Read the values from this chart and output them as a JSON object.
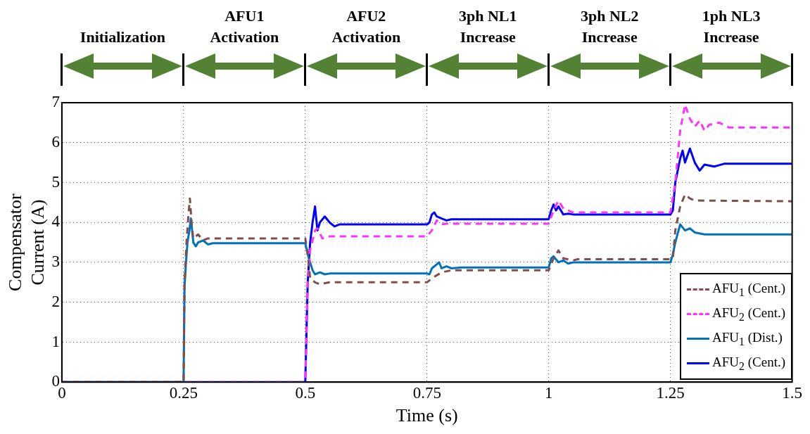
{
  "chart_data": {
    "type": "line",
    "xlabel": "Time (s)",
    "ylabel": "Compensator\nCurrent (A)",
    "xlim": [
      0,
      1.5
    ],
    "xticks": [
      0,
      0.25,
      0.5,
      0.75,
      1,
      1.25,
      1.5
    ],
    "ylim": [
      0,
      7
    ],
    "yticks": [
      0,
      1,
      2,
      3,
      4,
      5,
      6,
      7
    ],
    "grid": true,
    "legend": "bottom right",
    "annotations": [
      "Initialization",
      "AFU1\nActivation",
      "AFU2\nActivation",
      "3ph NL1\nIncrease",
      "3ph NL2\nIncrease",
      "1ph NL3\nIncrease"
    ],
    "series": [
      {
        "name": "AFU$_{1}$ (Cent.)",
        "color": "#7f4f4f",
        "line_style": "dashed",
        "x": [
          0,
          0.25,
          0.252,
          0.256,
          0.26,
          0.263,
          0.267,
          0.27,
          0.28,
          0.29,
          0.3,
          0.5,
          0.505,
          0.51,
          0.52,
          0.53,
          0.55,
          0.75,
          0.76,
          0.78,
          0.8,
          1,
          1.01,
          1.02,
          1.03,
          1.05,
          1.06,
          1.25,
          1.255,
          1.26,
          1.27,
          1.28,
          1.29,
          1.3,
          1.5
        ],
        "values": [
          0,
          0,
          2.5,
          3.5,
          4.2,
          4.6,
          3.9,
          3.6,
          3.7,
          3.55,
          3.6,
          3.6,
          3.2,
          2.6,
          2.5,
          2.45,
          2.5,
          2.5,
          2.6,
          2.75,
          2.8,
          2.8,
          3.1,
          3.3,
          3.1,
          3.05,
          3.08,
          3.08,
          3.1,
          3.8,
          4.4,
          4.7,
          4.6,
          4.55,
          4.53
        ]
      },
      {
        "name": "AFU$_{2}$ (Cent.)",
        "color": "#ff33ff",
        "line_style": "dashed",
        "x": [
          0,
          0.5,
          0.505,
          0.51,
          0.52,
          0.525,
          0.535,
          0.55,
          0.75,
          0.76,
          0.77,
          0.78,
          0.79,
          1,
          1.01,
          1.02,
          1.03,
          1.04,
          1.05,
          1.25,
          1.26,
          1.27,
          1.28,
          1.29,
          1.3,
          1.31,
          1.32,
          1.33,
          1.35,
          1.37,
          1.5
        ],
        "values": [
          0,
          0,
          2.5,
          3.3,
          3.8,
          3.85,
          3.6,
          3.65,
          3.65,
          3.8,
          4.05,
          3.95,
          3.97,
          3.97,
          4.3,
          4.55,
          4.35,
          4.3,
          4.25,
          4.25,
          5,
          6.3,
          6.95,
          6.6,
          6.4,
          6.55,
          6.3,
          6.45,
          6.5,
          6.38,
          6.38
        ]
      },
      {
        "name": "AFU$_{1}$ (Dist.)",
        "color": "#0072bd",
        "line_style": "solid",
        "x": [
          0,
          0.25,
          0.252,
          0.255,
          0.258,
          0.262,
          0.265,
          0.27,
          0.275,
          0.28,
          0.29,
          0.3,
          0.31,
          0.5,
          0.505,
          0.51,
          0.515,
          0.52,
          0.53,
          0.54,
          0.55,
          0.75,
          0.755,
          0.76,
          0.77,
          0.775,
          0.78,
          0.79,
          0.8,
          0.82,
          1,
          1.005,
          1.01,
          1.02,
          1.03,
          1.04,
          1.05,
          1.25,
          1.255,
          1.26,
          1.27,
          1.28,
          1.29,
          1.3,
          1.32,
          1.5
        ],
        "values": [
          0,
          0,
          2.4,
          3,
          3.5,
          3.8,
          4.1,
          3.5,
          3.4,
          3.5,
          3.55,
          3.45,
          3.48,
          3.48,
          3.2,
          3,
          2.8,
          2.7,
          2.75,
          2.7,
          2.72,
          2.72,
          2.7,
          2.85,
          2.95,
          3,
          2.85,
          2.9,
          2.85,
          2.87,
          2.87,
          3.1,
          3.15,
          3,
          3.05,
          2.97,
          3,
          3,
          3.2,
          3.5,
          3.95,
          3.8,
          3.85,
          3.75,
          3.7,
          3.7
        ]
      },
      {
        "name": "AFU$_{2}$ (Cent.)",
        "color": "#0000ff",
        "line_style": "solid",
        "x": [
          0,
          0.5,
          0.505,
          0.51,
          0.515,
          0.52,
          0.525,
          0.53,
          0.54,
          0.55,
          0.56,
          0.57,
          0.75,
          0.755,
          0.76,
          0.765,
          0.77,
          0.78,
          0.79,
          0.8,
          1,
          1.005,
          1.01,
          1.015,
          1.02,
          1.03,
          1.04,
          1.05,
          1.25,
          1.255,
          1.26,
          1.27,
          1.275,
          1.28,
          1.29,
          1.3,
          1.31,
          1.32,
          1.34,
          1.36,
          1.5
        ],
        "values": [
          0,
          0,
          2.5,
          3.5,
          4,
          4.4,
          3.8,
          4,
          4.15,
          4,
          3.9,
          3.95,
          3.95,
          4,
          4.2,
          4.25,
          4.15,
          4.1,
          4.05,
          4.08,
          4.08,
          4.3,
          4.45,
          4.3,
          4.4,
          4.2,
          4.22,
          4.2,
          4.2,
          4.3,
          5,
          5.6,
          5.8,
          5.5,
          5.85,
          5.5,
          5.3,
          5.45,
          5.4,
          5.47,
          5.47
        ]
      }
    ]
  }
}
